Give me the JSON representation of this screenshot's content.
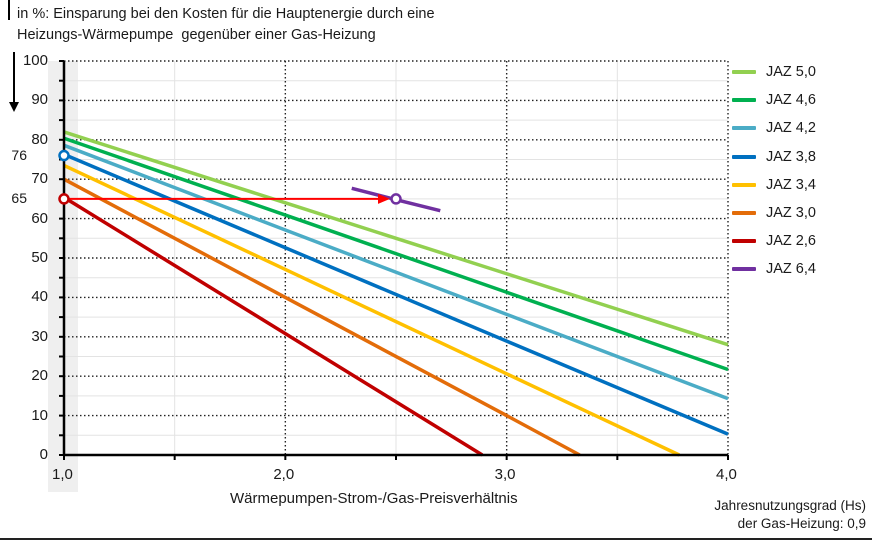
{
  "header": {
    "title_line1": "in %: Einsparung bei den Kosten für die Hauptenergie durch eine",
    "title_line2": "Heizungs-Wärmepumpe  gegenüber einer Gas-Heizung"
  },
  "axes": {
    "y_ticks": [
      "100",
      "90",
      "80",
      "70",
      "60",
      "50",
      "40",
      "30",
      "20",
      "10",
      "0"
    ],
    "y_markers": [
      "76",
      "65"
    ],
    "x_ticks": [
      "1,0",
      "2,0",
      "3,0",
      "4,0"
    ],
    "x_label": "Wärmepumpen-Strom-/Gas-Preisverhältnis"
  },
  "footnote": {
    "line1": "Jahresnutzungsgrad (Hs)",
    "line2": "der Gas-Heizung: 0,9"
  },
  "legend": [
    {
      "label": "JAZ 5,0",
      "color": "#92d050"
    },
    {
      "label": "JAZ 4,6",
      "color": "#00b050"
    },
    {
      "label": "JAZ 4,2",
      "color": "#4bacc6"
    },
    {
      "label": "JAZ 3,8",
      "color": "#0070c0"
    },
    {
      "label": "JAZ 3,4",
      "color": "#ffc000"
    },
    {
      "label": "JAZ 3,0",
      "color": "#e36c09"
    },
    {
      "label": "JAZ 2,6",
      "color": "#c00000"
    },
    {
      "label": "JAZ 6,4",
      "color": "#7030a0"
    }
  ],
  "chart_data": {
    "type": "line",
    "title": "in %: Einsparung bei den Kosten für die Hauptenergie durch eine Heizungs-Wärmepumpe gegenüber einer Gas-Heizung",
    "xlabel": "Wärmepumpen-Strom-/Gas-Preisverhältnis",
    "ylabel": "in %",
    "xlim": [
      1.0,
      4.0
    ],
    "ylim": [
      0,
      100
    ],
    "x_ticks": [
      1.0,
      2.0,
      3.0,
      4.0
    ],
    "y_ticks": [
      0,
      10,
      20,
      30,
      40,
      50,
      60,
      70,
      80,
      90,
      100
    ],
    "grid": true,
    "legend_position": "right",
    "series": [
      {
        "name": "JAZ 5,0",
        "color": "#92d050",
        "x": [
          1.0,
          2.0,
          3.0,
          4.0
        ],
        "y": [
          82,
          64,
          46,
          28
        ]
      },
      {
        "name": "JAZ 4,6",
        "color": "#00b050",
        "x": [
          1.0,
          2.0,
          3.0,
          4.0
        ],
        "y": [
          80.4,
          60.9,
          41.3,
          21.7
        ]
      },
      {
        "name": "JAZ 4,2",
        "color": "#4bacc6",
        "x": [
          1.0,
          2.0,
          3.0,
          4.0
        ],
        "y": [
          78.6,
          57.1,
          35.7,
          14.3
        ]
      },
      {
        "name": "JAZ 3,8",
        "color": "#0070c0",
        "x": [
          1.0,
          2.0,
          3.0,
          4.0
        ],
        "y": [
          76.3,
          52.6,
          28.9,
          5.3
        ]
      },
      {
        "name": "JAZ 3,4",
        "color": "#ffc000",
        "x": [
          1.0,
          2.0,
          3.0,
          3.78
        ],
        "y": [
          73.5,
          47.1,
          20.6,
          0
        ]
      },
      {
        "name": "JAZ 3,0",
        "color": "#e36c09",
        "x": [
          1.0,
          2.0,
          3.0,
          3.33
        ],
        "y": [
          70,
          40,
          10,
          0
        ]
      },
      {
        "name": "JAZ 2,6",
        "color": "#c00000",
        "x": [
          1.0,
          2.0,
          2.89
        ],
        "y": [
          65.4,
          30.8,
          0
        ]
      },
      {
        "name": "JAZ 6,4",
        "color": "#7030a0",
        "x": [
          2.3,
          2.5,
          2.7
        ],
        "y": [
          67.7,
          64.8,
          62.0
        ]
      }
    ],
    "annotations": [
      {
        "type": "marker",
        "x": 1.0,
        "y": 76,
        "label": "76",
        "color": "#0070c0"
      },
      {
        "type": "marker",
        "x": 1.0,
        "y": 65,
        "label": "65",
        "color": "#c00000"
      },
      {
        "type": "arrow",
        "from": [
          1.0,
          65
        ],
        "to": [
          2.5,
          65
        ],
        "color": "#ff0000"
      },
      {
        "type": "marker",
        "x": 2.5,
        "y": 65,
        "color": "#7030a0"
      }
    ],
    "note": "Jahresnutzungsgrad (Hs) der Gas-Heizung: 0,9"
  }
}
